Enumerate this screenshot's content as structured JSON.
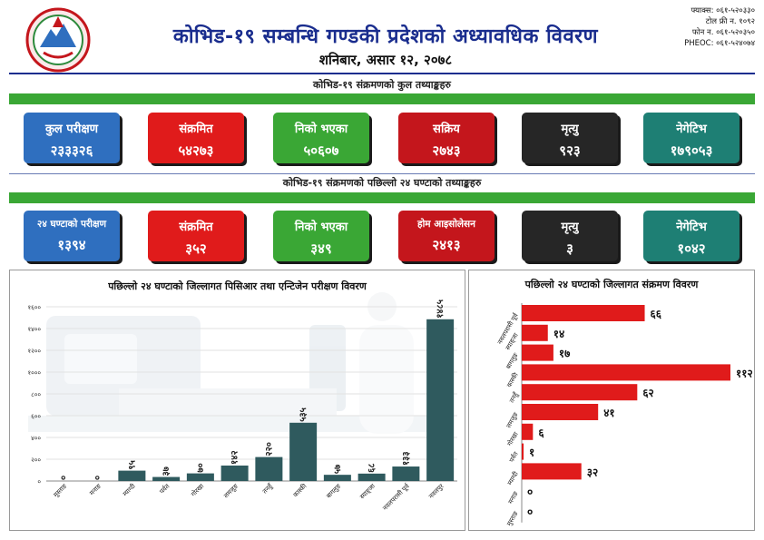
{
  "header": {
    "title": "कोभिड-१९ सम्बन्धि गण्डकी प्रदेशको अध्यावधिक विवरण",
    "date": "शनिबार, असार १२, २०७८",
    "contacts": [
      "फ्याक्स: ०६१-५२०३३०",
      "टोल फ्री न. १०९२",
      "फोन न. ०६१-५२०३५०",
      "PHEOC: ०६१-५२४०७४"
    ]
  },
  "colors": {
    "title": "#1a2d8e",
    "green": "#3aa735",
    "red": "#e01b1b",
    "bar": "#2f5a5e"
  },
  "total": {
    "heading": "कोभिड-१९ संक्रमणको कुल तथ्याङ्कहरु",
    "cards": [
      {
        "label": "कुल परीक्षण",
        "value": "२३३३२६"
      },
      {
        "label": "संक्रमित",
        "value": "५४२७३"
      },
      {
        "label": "निको भएका",
        "value": "५०६०७"
      },
      {
        "label": "सक्रिय",
        "value": "२७४३"
      },
      {
        "label": "मृत्यु",
        "value": "९२३"
      },
      {
        "label": "नेगेटिभ",
        "value": "१७९०५३"
      }
    ]
  },
  "last24": {
    "heading": "कोभिड-१९ संक्रमणको पछिल्लो २४ घण्टाको तथ्याङ्कहरु",
    "cards": [
      {
        "label": "२४ घण्टाको परीक्षण",
        "value": "१३९४"
      },
      {
        "label": "संक्रमित",
        "value": "३५२"
      },
      {
        "label": "निको भएका",
        "value": "३४९"
      },
      {
        "label": "होम आइसोलेसन",
        "value": "२४१३"
      },
      {
        "label": "मृत्यु",
        "value": "३"
      },
      {
        "label": "नेगेटिभ",
        "value": "१०४२"
      }
    ]
  },
  "chart_data": [
    {
      "type": "bar",
      "title": "पछिल्लो २४ घण्टाको जिल्लागत पिसिआर तथा एन्टिजेन परीक्षण विवरण",
      "categories": [
        "मुस्ताङ",
        "मनाङ",
        "म्याग्दी",
        "पर्वत",
        "गोरखा",
        "लमजुङ",
        "तनहुँ",
        "कास्की",
        "बागलुङ",
        "स्याङ्जा",
        "नवलपरासी पूर्व",
        "नवलपुर"
      ],
      "values": [
        0,
        0,
        95,
        37,
        70,
        142,
        220,
        535,
        57,
        68,
        133,
        1485
      ],
      "value_labels": [
        "०",
        "०",
        "९५",
        "३७",
        "७०",
        "१४२",
        "२२०",
        "५३५",
        "५७",
        "६८",
        "१३३",
        "१४८५"
      ],
      "yticks": [
        0,
        200,
        400,
        600,
        800,
        1000,
        1200,
        1400,
        1600
      ],
      "ytick_labels": [
        "०",
        "२००",
        "४००",
        "६००",
        "८००",
        "१०००",
        "१२००",
        "१४००",
        "१६००"
      ],
      "ylim": [
        0,
        1600
      ]
    },
    {
      "type": "bar",
      "orientation": "horizontal",
      "title": "पछिल्लो २४ घण्टाको जिल्लागत संक्रमण विवरण",
      "categories": [
        "नवलपरासी पूर्व",
        "स्याङ्जा",
        "बागलुङ",
        "कास्की",
        "तनहुँ",
        "लमजुङ",
        "गोरखा",
        "पर्वत",
        "म्याग्दी",
        "मनाङ",
        "मुस्ताङ"
      ],
      "values": [
        66,
        14,
        17,
        112,
        62,
        41,
        6,
        1,
        32,
        0,
        0
      ],
      "value_labels": [
        "६६",
        "१४",
        "१७",
        "११२",
        "६२",
        "४१",
        "६",
        "१",
        "३२",
        "०",
        "०"
      ],
      "xlim": [
        0,
        112
      ]
    }
  ]
}
